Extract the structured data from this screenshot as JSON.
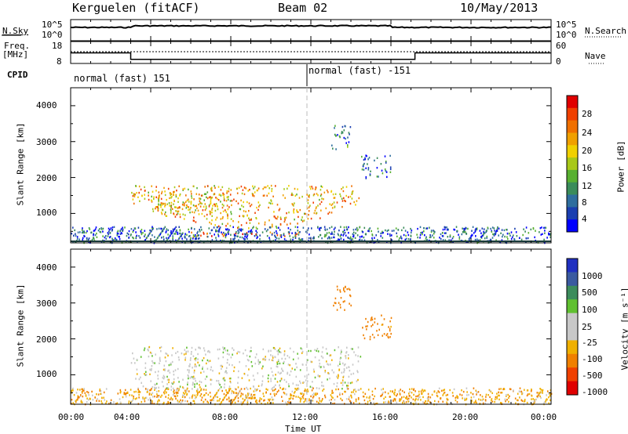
{
  "header": {
    "left": "Kerguelen (fitACF)",
    "center": "Beam 02",
    "right": "10/May/2013"
  },
  "noise_panel": {
    "left_label": "N.Sky",
    "right_label": "N.Search",
    "left_ticks": [
      "10^5",
      "10^0"
    ],
    "right_ticks": [
      "10^5",
      "10^0"
    ]
  },
  "freq_panel": {
    "left_label_1": "Freq.",
    "left_label_2": "[MHz]",
    "right_label": "Nave",
    "left_ticks": [
      "18",
      "8"
    ],
    "right_ticks": [
      "60",
      "0"
    ]
  },
  "cpid": {
    "label": "CPID",
    "segments": [
      {
        "text": "normal (fast) 151",
        "start_hour": 0
      },
      {
        "text": "normal (fast) -151",
        "start_hour": 12
      }
    ]
  },
  "chart_data": [
    {
      "type": "heatmap",
      "name": "power",
      "xlabel": "",
      "ylabel": "Slant Range [km]",
      "x_range_hours": [
        0,
        24
      ],
      "ylim": [
        180,
        4500
      ],
      "y_ticks": [
        1000,
        2000,
        3000,
        4000
      ],
      "colorbar": {
        "label": "Power [dB]",
        "ticks": [
          "4",
          "8",
          "12",
          "16",
          "20",
          "24",
          "28"
        ],
        "range": [
          0,
          30
        ],
        "colors": [
          "#0000ff",
          "#1a3fb0",
          "#2e6e9e",
          "#3a8c5a",
          "#58b030",
          "#a8c818",
          "#f0d000",
          "#f0a000",
          "#f07000",
          "#f04000",
          "#e00000"
        ]
      },
      "scatter_regions": [
        {
          "hour_start": 4.0,
          "hour_end": 8.0,
          "range_start": 1000,
          "range_end": 1800,
          "level": 18
        },
        {
          "hour_start": 3.0,
          "hour_end": 14.5,
          "range_start": 600,
          "range_end": 1800,
          "level": 20
        },
        {
          "hour_start": 6.0,
          "hour_end": 11.5,
          "range_start": 350,
          "range_end": 500,
          "level": 26
        },
        {
          "hour_start": 13.0,
          "hour_end": 14.0,
          "range_start": 2800,
          "range_end": 3500,
          "level": 8
        },
        {
          "hour_start": 14.5,
          "hour_end": 16.0,
          "range_start": 2000,
          "range_end": 2700,
          "level": 6
        },
        {
          "hour_start": 0.0,
          "hour_end": 24.0,
          "range_start": 200,
          "range_end": 650,
          "level": 6
        }
      ]
    },
    {
      "type": "heatmap",
      "name": "velocity",
      "xlabel": "Time UT",
      "ylabel": "Slant Range [km]",
      "x_range_hours": [
        0,
        24
      ],
      "ylim": [
        180,
        4500
      ],
      "y_ticks": [
        1000,
        2000,
        3000,
        4000
      ],
      "x_tick_labels": [
        "00:00",
        "04:00",
        "08:00",
        "12:00",
        "16:00",
        "20:00",
        "00:00"
      ],
      "colorbar": {
        "label": "Velocity [m s⁻¹]",
        "ticks": [
          "1000",
          "500",
          "100",
          "25",
          "-25",
          "-100",
          "-500",
          "-1000"
        ],
        "colors": [
          "#2030c0",
          "#3a5aa0",
          "#3c8c5c",
          "#60c030",
          "#c8c8c8",
          "#c8c8c8",
          "#f0b000",
          "#f08000",
          "#f04000",
          "#e00000"
        ]
      },
      "scatter_regions": [
        {
          "hour_start": 3.0,
          "hour_end": 14.5,
          "range_start": 600,
          "range_end": 1800,
          "level": 0
        },
        {
          "hour_start": 6.0,
          "hour_end": 11.5,
          "range_start": 350,
          "range_end": 500,
          "level": 0
        },
        {
          "hour_start": 13.0,
          "hour_end": 14.0,
          "range_start": 2800,
          "range_end": 3500,
          "level": -200
        },
        {
          "hour_start": 14.5,
          "hour_end": 16.0,
          "range_start": 2000,
          "range_end": 2700,
          "level": -150
        },
        {
          "hour_start": 0.0,
          "hour_end": 24.0,
          "range_start": 200,
          "range_end": 650,
          "level": -80
        }
      ]
    }
  ]
}
